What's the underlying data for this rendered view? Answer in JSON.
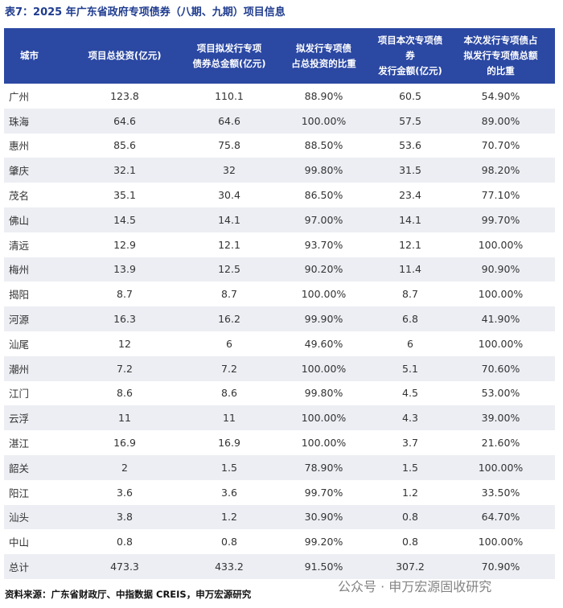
{
  "title": "表7：2025 年广东省政府专项债券（八期、九期）项目信息",
  "table": {
    "header": [
      "城市",
      "项目总投资(亿元)",
      "项目拟发行专项\n债券总金额(亿元)",
      "拟发行专项债\n占总投资的比重",
      "项目本次专项债券\n发行金额(亿元)",
      "本次发行专项债占\n拟发行专项债总额\n的比重"
    ],
    "rows": [
      [
        "广州",
        "123.8",
        "110.1",
        "88.90%",
        "60.5",
        "54.90%"
      ],
      [
        "珠海",
        "64.6",
        "64.6",
        "100.00%",
        "57.5",
        "89.00%"
      ],
      [
        "惠州",
        "85.6",
        "75.8",
        "88.50%",
        "53.6",
        "70.70%"
      ],
      [
        "肇庆",
        "32.1",
        "32",
        "99.80%",
        "31.5",
        "98.20%"
      ],
      [
        "茂名",
        "35.1",
        "30.4",
        "86.50%",
        "23.4",
        "77.10%"
      ],
      [
        "佛山",
        "14.5",
        "14.1",
        "97.00%",
        "14.1",
        "99.70%"
      ],
      [
        "清远",
        "12.9",
        "12.1",
        "93.70%",
        "12.1",
        "100.00%"
      ],
      [
        "梅州",
        "13.9",
        "12.5",
        "90.20%",
        "11.4",
        "90.90%"
      ],
      [
        "揭阳",
        "8.7",
        "8.7",
        "100.00%",
        "8.7",
        "100.00%"
      ],
      [
        "河源",
        "16.3",
        "16.2",
        "99.90%",
        "6.8",
        "41.90%"
      ],
      [
        "汕尾",
        "12",
        "6",
        "49.60%",
        "6",
        "100.00%"
      ],
      [
        "潮州",
        "7.2",
        "7.2",
        "100.00%",
        "5.1",
        "70.60%"
      ],
      [
        "江门",
        "8.6",
        "8.6",
        "99.80%",
        "4.5",
        "53.00%"
      ],
      [
        "云浮",
        "11",
        "11",
        "100.00%",
        "4.3",
        "39.00%"
      ],
      [
        "湛江",
        "16.9",
        "16.9",
        "100.00%",
        "3.7",
        "21.60%"
      ],
      [
        "韶关",
        "2",
        "1.5",
        "78.90%",
        "1.5",
        "100.00%"
      ],
      [
        "阳江",
        "3.6",
        "3.6",
        "99.70%",
        "1.2",
        "33.50%"
      ],
      [
        "汕头",
        "3.8",
        "1.2",
        "30.90%",
        "0.8",
        "64.70%"
      ],
      [
        "中山",
        "0.8",
        "0.8",
        "99.20%",
        "0.8",
        "100.00%"
      ],
      [
        "总计",
        "473.3",
        "433.2",
        "91.50%",
        "307.2",
        "70.90%"
      ]
    ]
  },
  "source": "资料来源：广东省财政厅、中指数据 CREIS，申万宏源研究",
  "watermark": "公众号 · 申万宏源固收研究"
}
